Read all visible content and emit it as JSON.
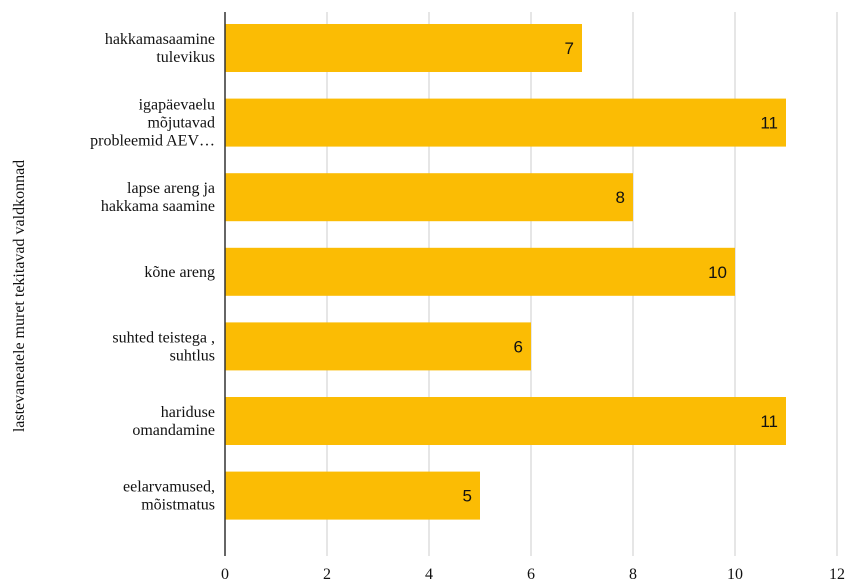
{
  "chart_data": {
    "type": "bar",
    "orientation": "horizontal",
    "categories": [
      [
        "hakkamasaamine",
        "tulevikus"
      ],
      [
        "igapäevaelu",
        "mõjutavad",
        "probleemid AEV…"
      ],
      [
        "lapse areng ja",
        "hakkama saamine"
      ],
      [
        "kõne areng"
      ],
      [
        "suhted teistega ,",
        "suhtlus"
      ],
      [
        "hariduse",
        "omandamine"
      ],
      [
        "eelarvamused,",
        "mõistmatus"
      ]
    ],
    "values": [
      7,
      11,
      8,
      10,
      6,
      11,
      5
    ],
    "data_labels": [
      "7",
      "11",
      "8",
      "10",
      "6",
      "11",
      "5"
    ],
    "xlim": [
      0,
      12
    ],
    "xticks": [
      "0",
      "2",
      "4",
      "6",
      "8",
      "10",
      "12"
    ],
    "ylabel": "lastevaneatele muret tekitavad valdkonnad",
    "xlabel": "",
    "title": "",
    "grid": "vertical",
    "legend": "none",
    "colors": {
      "bar": "#fbbc04",
      "grid": "#cccccc",
      "axis": "#333333"
    }
  }
}
